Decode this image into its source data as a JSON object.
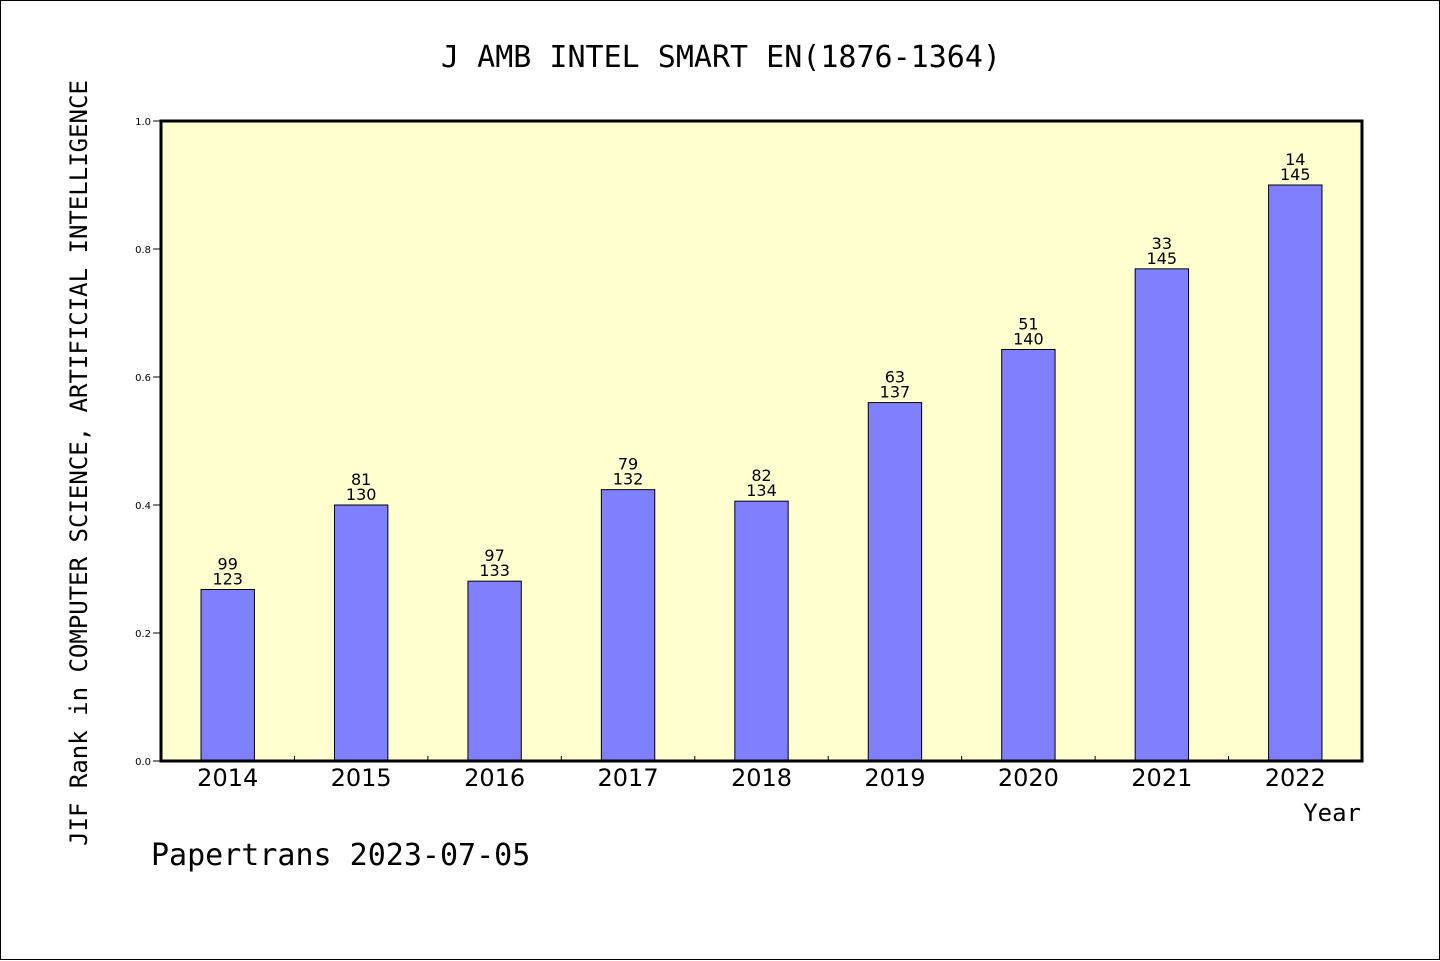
{
  "colors": {
    "plot_background": "#ffffd0",
    "bar_fill": "#8080ff",
    "bar_stroke": "#000000"
  },
  "footer": "Papertrans 2023-07-05",
  "chart_data": {
    "type": "bar",
    "title": "J AMB INTEL SMART EN(1876-1364)",
    "ylabel": "JIF Rank in COMPUTER SCIENCE, ARTIFICIAL INTELLIGENCE",
    "xlabel": "Year",
    "ylim": [
      0,
      1.0
    ],
    "yticks": [
      "0.0",
      "0.2",
      "0.4",
      "0.6",
      "0.8",
      "1.0"
    ],
    "categories": [
      "2014",
      "2015",
      "2016",
      "2017",
      "2018",
      "2019",
      "2020",
      "2021",
      "2022"
    ],
    "values": [
      0.268,
      0.4,
      0.281,
      0.424,
      0.406,
      0.56,
      0.643,
      0.769,
      0.9
    ],
    "rank": [
      "99",
      "81",
      "97",
      "79",
      "82",
      "63",
      "51",
      "33",
      "14"
    ],
    "total": [
      "123",
      "130",
      "133",
      "132",
      "134",
      "137",
      "140",
      "145",
      "145"
    ],
    "grid": false,
    "legend": "none"
  }
}
